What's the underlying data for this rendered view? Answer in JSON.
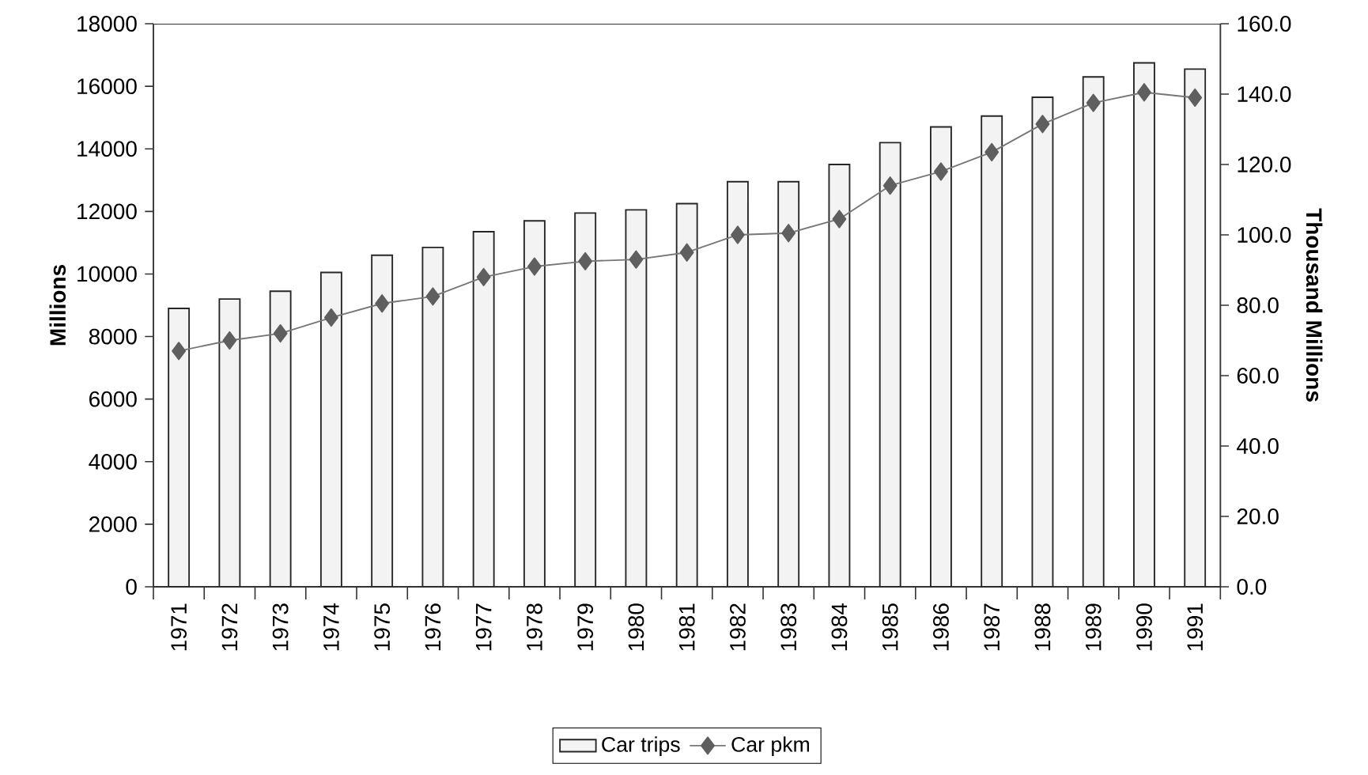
{
  "chart_data": {
    "type": "bar",
    "categories": [
      "1971",
      "1972",
      "1973",
      "1974",
      "1975",
      "1976",
      "1977",
      "1978",
      "1979",
      "1980",
      "1981",
      "1982",
      "1983",
      "1984",
      "1985",
      "1986",
      "1987",
      "1988",
      "1989",
      "1990",
      "1991"
    ],
    "series": [
      {
        "name": "Car trips",
        "color": "#f2f3f2",
        "values": [
          8900,
          9200,
          9450,
          10050,
          10600,
          10850,
          11350,
          11700,
          11950,
          12050,
          12250,
          12950,
          12950,
          13500,
          14200,
          14700,
          15050,
          15650,
          16300,
          16750,
          16550
        ]
      },
      {
        "name": "Car pkm",
        "type": "line",
        "axis": "y2",
        "color": "#5f5f5f",
        "marker": "diamond",
        "values": [
          67,
          70,
          72,
          76.5,
          80.5,
          82.5,
          88,
          91,
          92.5,
          93,
          95,
          100,
          100.5,
          104.5,
          114,
          118,
          123.5,
          131.5,
          137.5,
          140.5,
          139
        ]
      }
    ],
    "ylabel": "Millions",
    "y2label": "Thousand Millions",
    "ylim": [
      0,
      18000
    ],
    "yticks": [
      0,
      2000,
      4000,
      6000,
      8000,
      10000,
      12000,
      14000,
      16000,
      18000
    ],
    "y2lim": [
      0,
      160
    ],
    "y2ticks": [
      {
        "value": 0,
        "label": "0.0"
      },
      {
        "value": 20,
        "label": "20.0"
      },
      {
        "value": 40,
        "label": "40.0"
      },
      {
        "value": 60,
        "label": "60.0"
      },
      {
        "value": 80,
        "label": "80.0"
      },
      {
        "value": 100,
        "label": "100.0"
      },
      {
        "value": 120,
        "label": "120.0"
      },
      {
        "value": 140,
        "label": "140.0"
      },
      {
        "value": 160,
        "label": "160.0"
      }
    ],
    "legend": "bottom",
    "grid": false
  }
}
